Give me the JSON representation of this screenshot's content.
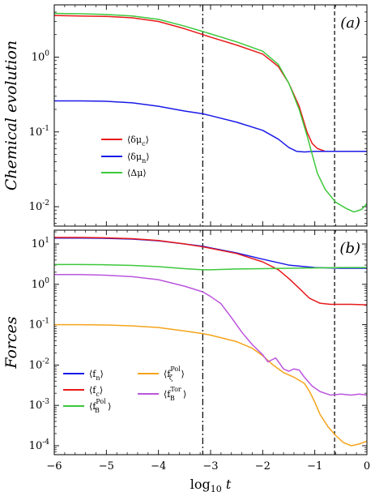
{
  "chart_data": [
    {
      "type": "line",
      "panel_label": "(a)",
      "ylabel": "Chemical evolution",
      "yscale": "log",
      "ylim": [
        0.0055,
        5
      ],
      "xlim": [
        -6,
        0
      ],
      "y_ticks": [
        0.01,
        0.1,
        1
      ],
      "y_tick_labels": [
        "10",
        "10",
        "10"
      ],
      "y_tick_exps": [
        "-2",
        "-1",
        "0"
      ],
      "vlines": [
        {
          "x": -3.15,
          "style": "dashdot"
        },
        {
          "x": -0.62,
          "style": "dashed"
        }
      ],
      "legend": {
        "placement": "middle-left"
      },
      "series": [
        {
          "name": "⟨δμc⟩",
          "label_base": "δμ",
          "label_sub": "c",
          "color": "#e8191a",
          "points": [
            [
              -6,
              3.6
            ],
            [
              -5.5,
              3.55
            ],
            [
              -5,
              3.5
            ],
            [
              -4.5,
              3.35
            ],
            [
              -4,
              3.0
            ],
            [
              -3.5,
              2.4
            ],
            [
              -3.15,
              2.0
            ],
            [
              -3,
              1.85
            ],
            [
              -2.5,
              1.45
            ],
            [
              -2,
              1.1
            ],
            [
              -1.7,
              0.75
            ],
            [
              -1.5,
              0.45
            ],
            [
              -1.3,
              0.22
            ],
            [
              -1.15,
              0.1
            ],
            [
              -1.05,
              0.07
            ],
            [
              -0.95,
              0.06
            ],
            [
              -0.8,
              0.055
            ],
            [
              -0.6,
              0.055
            ],
            [
              -0.3,
              0.055
            ],
            [
              0,
              0.055
            ]
          ]
        },
        {
          "name": "⟨δμn⟩",
          "label_base": "δμ",
          "label_sub": "n",
          "color": "#1a1ae8",
          "points": [
            [
              -6,
              0.26
            ],
            [
              -5.5,
              0.26
            ],
            [
              -5,
              0.257
            ],
            [
              -4.5,
              0.245
            ],
            [
              -4,
              0.22
            ],
            [
              -3.5,
              0.19
            ],
            [
              -3.15,
              0.175
            ],
            [
              -3,
              0.165
            ],
            [
              -2.5,
              0.135
            ],
            [
              -2,
              0.105
            ],
            [
              -1.7,
              0.08
            ],
            [
              -1.5,
              0.062
            ],
            [
              -1.35,
              0.055
            ],
            [
              -1.2,
              0.054
            ],
            [
              -1,
              0.055
            ],
            [
              -0.6,
              0.055
            ],
            [
              -0.3,
              0.055
            ],
            [
              0,
              0.055
            ]
          ]
        },
        {
          "name": "⟨Δμ⟩",
          "label_base": "Δμ",
          "label_sub": "",
          "color": "#3cc83c",
          "points": [
            [
              -6,
              3.85
            ],
            [
              -5.5,
              3.8
            ],
            [
              -5,
              3.72
            ],
            [
              -4.5,
              3.55
            ],
            [
              -4,
              3.2
            ],
            [
              -3.5,
              2.6
            ],
            [
              -3.15,
              2.2
            ],
            [
              -3,
              2.05
            ],
            [
              -2.5,
              1.6
            ],
            [
              -2,
              1.2
            ],
            [
              -1.7,
              0.8
            ],
            [
              -1.5,
              0.45
            ],
            [
              -1.3,
              0.2
            ],
            [
              -1.15,
              0.09
            ],
            [
              -1.05,
              0.05
            ],
            [
              -0.95,
              0.028
            ],
            [
              -0.8,
              0.017
            ],
            [
              -0.6,
              0.0115
            ],
            [
              -0.4,
              0.0095
            ],
            [
              -0.25,
              0.0085
            ],
            [
              -0.1,
              0.0092
            ],
            [
              0,
              0.011
            ]
          ]
        }
      ]
    },
    {
      "type": "line",
      "panel_label": "(b)",
      "ylabel": "Forces",
      "xlabel_base": "log",
      "xlabel_sub": "10",
      "xlabel_var": "t",
      "yscale": "log",
      "ylim": [
        6e-05,
        22
      ],
      "xlim": [
        -6,
        0
      ],
      "x_ticks": [
        -6,
        -5,
        -4,
        -3,
        -2,
        -1,
        0
      ],
      "x_tick_labels": [
        "−6",
        "−5",
        "−4",
        "−3",
        "−2",
        "−1",
        "0"
      ],
      "y_ticks": [
        0.0001,
        0.001,
        0.01,
        0.1,
        1,
        10
      ],
      "y_tick_labels": [
        "10",
        "10",
        "10",
        "10",
        "10",
        "10"
      ],
      "y_tick_exps": [
        "-4",
        "-3",
        "-2",
        "-1",
        "0",
        "1"
      ],
      "vlines": [
        {
          "x": -3.15,
          "style": "dashdot"
        },
        {
          "x": -0.62,
          "style": "dashed"
        }
      ],
      "legend": {
        "placement": "lower-left"
      },
      "series": [
        {
          "name": "⟨fn⟩",
          "label_base": "f",
          "label_sub": "n",
          "label_sup": "",
          "color": "#1a1ae8",
          "points": [
            [
              -6,
              14
            ],
            [
              -5.5,
              14
            ],
            [
              -5,
              13.8
            ],
            [
              -4.5,
              13.2
            ],
            [
              -4,
              12
            ],
            [
              -3.5,
              10
            ],
            [
              -3.15,
              8.8
            ],
            [
              -3,
              8
            ],
            [
              -2.5,
              6
            ],
            [
              -2,
              4.2
            ],
            [
              -1.5,
              3
            ],
            [
              -1,
              2.6
            ],
            [
              -0.5,
              2.5
            ],
            [
              0,
              2.5
            ]
          ]
        },
        {
          "name": "⟨fc⟩",
          "label_base": "f",
          "label_sub": "c",
          "label_sup": "",
          "color": "#e8191a",
          "points": [
            [
              -6,
              14.5
            ],
            [
              -5.5,
              14.5
            ],
            [
              -5,
              14.2
            ],
            [
              -4.5,
              13.5
            ],
            [
              -4,
              12.2
            ],
            [
              -3.5,
              10
            ],
            [
              -3.15,
              8.5
            ],
            [
              -3,
              7.8
            ],
            [
              -2.5,
              5.8
            ],
            [
              -2,
              3.6
            ],
            [
              -1.7,
              2.3
            ],
            [
              -1.5,
              1.4
            ],
            [
              -1.3,
              0.8
            ],
            [
              -1.1,
              0.45
            ],
            [
              -0.9,
              0.34
            ],
            [
              -0.7,
              0.32
            ],
            [
              -0.3,
              0.32
            ],
            [
              0,
              0.31
            ]
          ]
        },
        {
          "name": "⟨fB Pol⟩",
          "label_base": "f",
          "label_sub": "B",
          "label_sup": "Pol",
          "color": "#3cc83c",
          "points": [
            [
              -6,
              3.1
            ],
            [
              -5.5,
              3.1
            ],
            [
              -5,
              3.05
            ],
            [
              -4.5,
              2.95
            ],
            [
              -4,
              2.75
            ],
            [
              -3.5,
              2.45
            ],
            [
              -3.15,
              2.3
            ],
            [
              -3,
              2.3
            ],
            [
              -2.5,
              2.4
            ],
            [
              -2,
              2.45
            ],
            [
              -1.5,
              2.5
            ],
            [
              -1,
              2.55
            ],
            [
              -0.5,
              2.6
            ],
            [
              0,
              2.6
            ]
          ]
        },
        {
          "name": "⟨fζ Pol⟩",
          "label_base": "f",
          "label_sub": "ζ",
          "label_sup": "Pol",
          "color": "#f5a41a",
          "points": [
            [
              -6,
              0.1
            ],
            [
              -5.5,
              0.1
            ],
            [
              -5,
              0.098
            ],
            [
              -4.5,
              0.093
            ],
            [
              -4,
              0.085
            ],
            [
              -3.5,
              0.07
            ],
            [
              -3.15,
              0.06
            ],
            [
              -3,
              0.055
            ],
            [
              -2.5,
              0.038
            ],
            [
              -2.2,
              0.026
            ],
            [
              -2,
              0.017
            ],
            [
              -1.8,
              0.01
            ],
            [
              -1.6,
              0.0065
            ],
            [
              -1.4,
              0.005
            ],
            [
              -1.2,
              0.0035
            ],
            [
              -1.1,
              0.0022
            ],
            [
              -1,
              0.0012
            ],
            [
              -0.9,
              0.0006
            ],
            [
              -0.75,
              0.0003
            ],
            [
              -0.6,
              0.00018
            ],
            [
              -0.45,
              0.00012
            ],
            [
              -0.3,
              0.0001
            ],
            [
              -0.15,
              0.00011
            ],
            [
              0,
              0.00013
            ]
          ]
        },
        {
          "name": "⟨fB Tor⟩",
          "label_base": "f",
          "label_sub": "B",
          "label_sup": "Tor",
          "color": "#bb55dd",
          "points": [
            [
              -6,
              1.75
            ],
            [
              -5.5,
              1.75
            ],
            [
              -5,
              1.68
            ],
            [
              -4.5,
              1.55
            ],
            [
              -4,
              1.3
            ],
            [
              -3.5,
              0.9
            ],
            [
              -3.15,
              0.65
            ],
            [
              -3,
              0.5
            ],
            [
              -2.8,
              0.33
            ],
            [
              -2.6,
              0.15
            ],
            [
              -2.4,
              0.065
            ],
            [
              -2.2,
              0.032
            ],
            [
              -2,
              0.018
            ],
            [
              -1.9,
              0.012
            ],
            [
              -1.75,
              0.015
            ],
            [
              -1.6,
              0.008
            ],
            [
              -1.5,
              0.007
            ],
            [
              -1.4,
              0.008
            ],
            [
              -1.3,
              0.0075
            ],
            [
              -1.2,
              0.005
            ],
            [
              -1.05,
              0.003
            ],
            [
              -0.9,
              0.0022
            ],
            [
              -0.7,
              0.0018
            ],
            [
              -0.5,
              0.0019
            ],
            [
              -0.3,
              0.0018
            ],
            [
              -0.15,
              0.0019
            ],
            [
              0,
              0.0018
            ]
          ]
        }
      ]
    }
  ]
}
